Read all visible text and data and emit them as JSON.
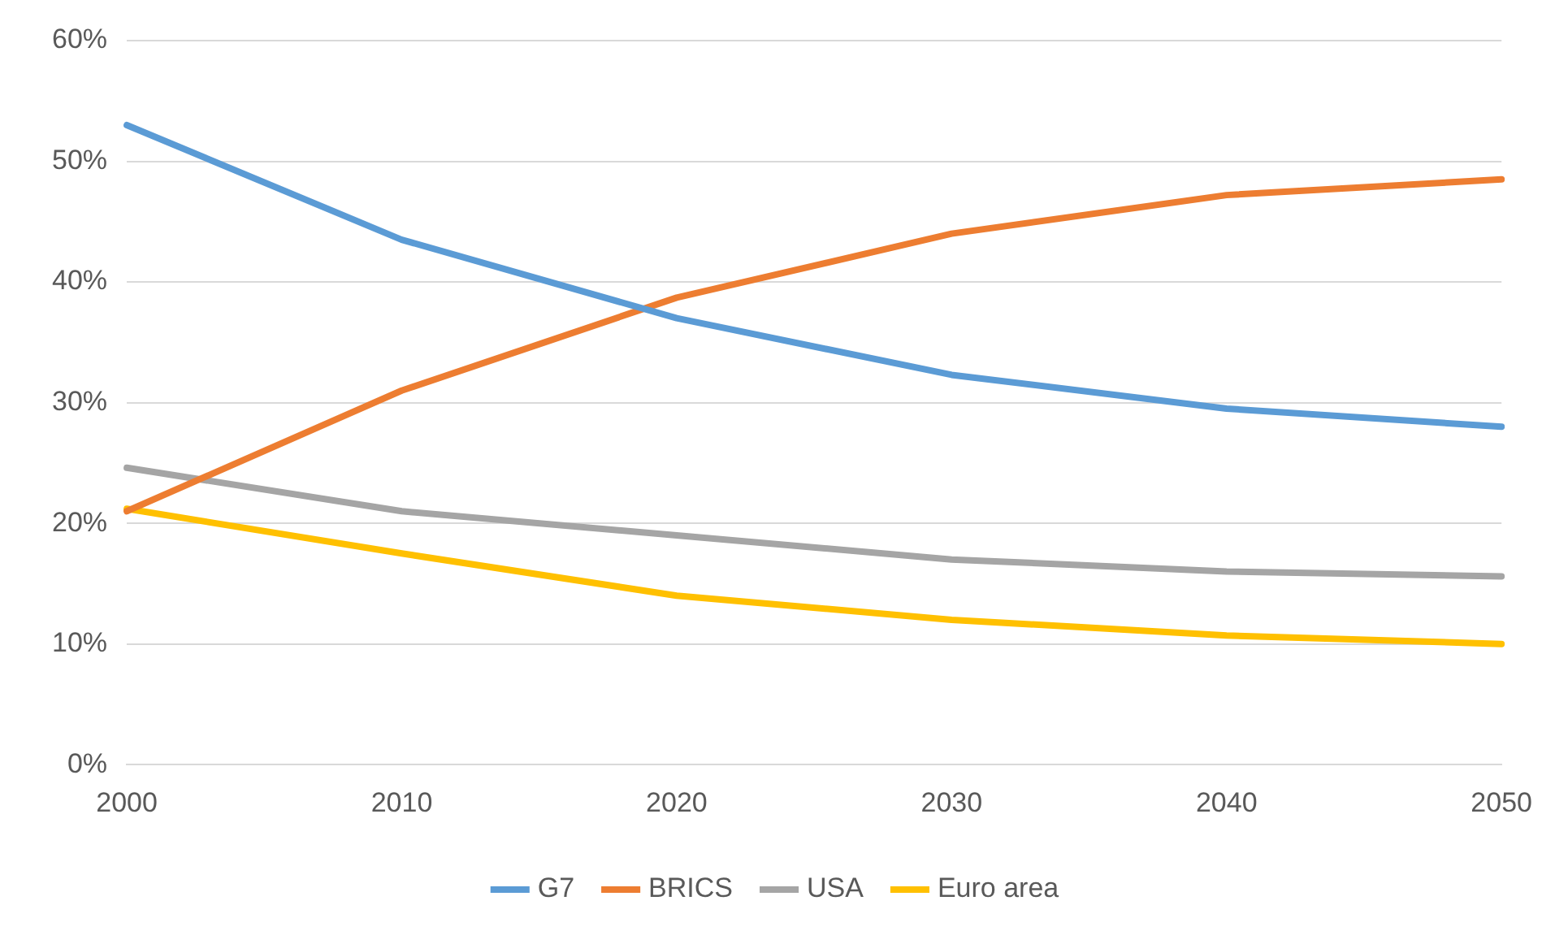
{
  "chart_data": {
    "type": "line",
    "categories": [
      "2000",
      "2010",
      "2020",
      "2030",
      "2040",
      "2050"
    ],
    "series": [
      {
        "name": "G7",
        "color": "#5b9bd5",
        "values": [
          53,
          43.5,
          37,
          32.3,
          29.5,
          28
        ]
      },
      {
        "name": "BRICS",
        "color": "#ed7d31",
        "values": [
          21,
          31,
          38.7,
          44,
          47.2,
          48.5
        ]
      },
      {
        "name": "USA",
        "color": "#a5a5a5",
        "values": [
          24.6,
          21,
          19,
          17,
          16,
          15.6
        ]
      },
      {
        "name": "Euro area",
        "color": "#ffc000",
        "values": [
          21.2,
          17.5,
          14,
          12,
          10.7,
          10
        ]
      }
    ],
    "ylim": [
      0,
      60
    ],
    "yticks": [
      {
        "value": 0,
        "label": "0%"
      },
      {
        "value": 10,
        "label": "10%"
      },
      {
        "value": 20,
        "label": "20%"
      },
      {
        "value": 30,
        "label": "30%"
      },
      {
        "value": 40,
        "label": "40%"
      },
      {
        "value": 50,
        "label": "50%"
      },
      {
        "value": 60,
        "label": "60%"
      }
    ],
    "grid": "y",
    "legend": "bottom",
    "marker": "none",
    "line_style": "solid"
  }
}
